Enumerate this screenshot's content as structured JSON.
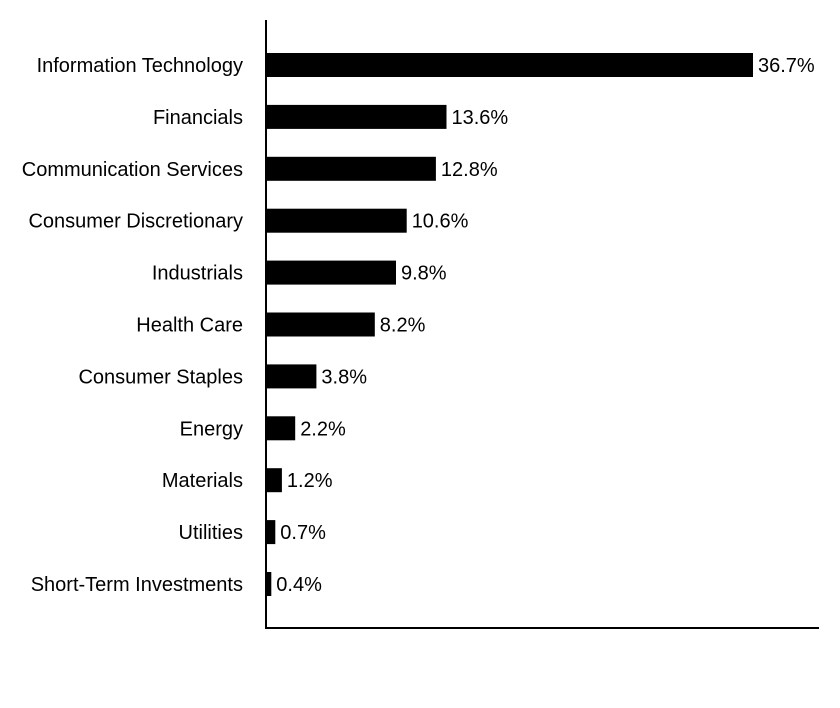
{
  "chart_data": {
    "type": "bar",
    "orientation": "horizontal",
    "categories": [
      "Information Technology",
      "Financials",
      "Communication Services",
      "Consumer Discretionary",
      "Industrials",
      "Health Care",
      "Consumer Staples",
      "Energy",
      "Materials",
      "Utilities",
      "Short-Term Investments"
    ],
    "values": [
      36.7,
      13.6,
      12.8,
      10.6,
      9.8,
      8.2,
      3.8,
      2.2,
      1.2,
      0.7,
      0.4
    ],
    "value_labels": [
      "36.7%",
      "13.6%",
      "12.8%",
      "10.6%",
      "9.8%",
      "8.2%",
      "3.8%",
      "2.2%",
      "1.2%",
      "0.7%",
      "0.4%"
    ],
    "unit": "%",
    "xlim": [
      0,
      42
    ],
    "title": "",
    "xlabel": "",
    "ylabel": "",
    "grid": false,
    "legend": "none",
    "bar_color": "#000000",
    "axis_color": "#000000"
  }
}
